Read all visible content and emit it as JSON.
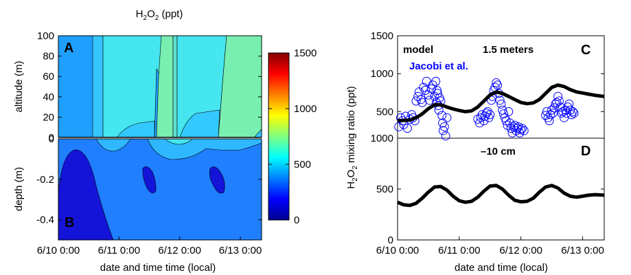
{
  "chart_data": [
    {
      "type": "heatmap",
      "panel": "A",
      "title": "H2O2 (ppt)",
      "title_parts": {
        "base1": "H",
        "sub1": "2",
        "base2": "O",
        "sub2": "2",
        "rest": " (ppt)"
      },
      "ylabel": "altitude (m)",
      "ylim": [
        0,
        100
      ],
      "yticks": [
        "0",
        "20",
        "40",
        "60",
        "80",
        "100"
      ],
      "colorbar": {
        "range": [
          0,
          1500
        ],
        "ticks": [
          "0",
          "500",
          "1000",
          "1500"
        ]
      }
    },
    {
      "type": "heatmap",
      "panel": "B",
      "ylabel": "depth (m)",
      "ylim": [
        -0.5,
        0
      ],
      "yticks": [
        "0",
        "-0.2",
        "-0.4"
      ],
      "xlabel": "date and time time (local)",
      "xticks": [
        "6/10 0:00",
        "6/11 0:00",
        "6/12 0:00",
        "6/13 0:00"
      ]
    },
    {
      "type": "scatter",
      "panel": "C",
      "annotation": "1.5 meters",
      "ylim": [
        0,
        1500
      ],
      "yticks": [
        "500",
        "1000",
        "1500"
      ],
      "legend": [
        "model",
        "Jacobi et al."
      ],
      "series": [
        {
          "name": "model",
          "style": "line",
          "color": "#000000",
          "x": [
            0,
            0.1,
            0.2,
            0.3,
            0.4,
            0.5,
            0.6,
            0.7,
            0.8,
            0.9,
            1.0,
            1.1,
            1.2,
            1.3,
            1.4,
            1.5,
            1.6,
            1.7,
            1.8,
            1.9,
            2.0,
            2.1,
            2.2,
            2.3,
            2.4,
            2.5,
            2.6,
            2.7,
            2.8,
            2.9,
            3.0,
            3.1,
            3.2,
            3.35
          ],
          "y": [
            380,
            385,
            390,
            420,
            470,
            540,
            590,
            590,
            560,
            535,
            515,
            500,
            510,
            560,
            640,
            720,
            760,
            740,
            700,
            660,
            620,
            605,
            615,
            660,
            740,
            820,
            850,
            830,
            790,
            760,
            745,
            730,
            715,
            700
          ]
        },
        {
          "name": "Jacobi et al.",
          "style": "markers",
          "color": "#0000ff",
          "x": [
            0.02,
            0.05,
            0.08,
            0.1,
            0.13,
            0.16,
            0.2,
            0.23,
            0.25,
            0.28,
            0.3,
            0.33,
            0.35,
            0.38,
            0.4,
            0.42,
            0.45,
            0.47,
            0.5,
            0.52,
            0.55,
            0.57,
            0.6,
            0.62,
            0.63,
            0.64,
            0.65,
            0.66,
            0.67,
            0.68,
            0.7,
            0.72,
            0.73,
            0.74,
            0.76,
            0.78,
            0.8,
            1.3,
            1.33,
            1.35,
            1.37,
            1.4,
            1.42,
            1.44,
            1.46,
            1.48,
            1.5,
            1.52,
            1.54,
            1.56,
            1.58,
            1.6,
            1.62,
            1.64,
            1.66,
            1.68,
            1.7,
            1.72,
            1.74,
            1.76,
            1.78,
            1.8,
            1.82,
            1.84,
            1.86,
            1.88,
            1.9,
            1.92,
            1.94,
            1.96,
            1.98,
            2.0,
            2.02,
            2.05,
            2.4,
            2.42,
            2.44,
            2.46,
            2.48,
            2.5,
            2.52,
            2.54,
            2.56,
            2.58,
            2.6,
            2.62,
            2.64,
            2.66,
            2.68,
            2.7,
            2.72,
            2.74,
            2.76,
            2.78,
            2.8,
            2.82,
            2.84,
            2.86
          ],
          "y": [
            300,
            420,
            380,
            330,
            440,
            280,
            400,
            460,
            420,
            380,
            640,
            700,
            760,
            660,
            620,
            820,
            780,
            900,
            720,
            650,
            800,
            850,
            700,
            900,
            620,
            780,
            740,
            580,
            520,
            680,
            640,
            450,
            350,
            250,
            300,
            180,
            420,
            400,
            350,
            420,
            460,
            380,
            440,
            480,
            500,
            420,
            460,
            650,
            700,
            780,
            820,
            880,
            850,
            740,
            650,
            600,
            520,
            470,
            420,
            380,
            320,
            500,
            350,
            280,
            220,
            300,
            320,
            250,
            280,
            300,
            220,
            260,
            280,
            250,
            450,
            500,
            420,
            380,
            460,
            520,
            480,
            550,
            600,
            620,
            700,
            640,
            560,
            480,
            500,
            420,
            520,
            480,
            560,
            600,
            520,
            460,
            500,
            480
          ]
        }
      ]
    },
    {
      "type": "line",
      "panel": "D",
      "annotation": "–10 cm",
      "ylabel": "H2O2 mixing ratio (ppt)",
      "ylabel_parts": {
        "base1": "H",
        "sub1": "2",
        "base2": "O",
        "sub2": "2",
        "rest": " mixing ratio (ppt)"
      },
      "ylim": [
        0,
        1000
      ],
      "yticks": [
        "0",
        "500",
        "1000"
      ],
      "xlabel": "date and time (local)",
      "xticks": [
        "6/10 0:00",
        "6/11 0:00",
        "6/12 0:00",
        "6/13 0:00"
      ],
      "series": [
        {
          "name": "",
          "color": "#000000",
          "x": [
            0,
            0.1,
            0.2,
            0.3,
            0.4,
            0.5,
            0.6,
            0.7,
            0.8,
            0.9,
            1.0,
            1.1,
            1.2,
            1.3,
            1.4,
            1.5,
            1.6,
            1.7,
            1.8,
            1.9,
            2.0,
            2.1,
            2.2,
            2.3,
            2.4,
            2.5,
            2.6,
            2.7,
            2.8,
            2.9,
            3.0,
            3.1,
            3.2,
            3.35
          ],
          "y": [
            370,
            345,
            340,
            360,
            410,
            470,
            520,
            525,
            490,
            430,
            385,
            370,
            380,
            420,
            480,
            530,
            535,
            500,
            440,
            390,
            375,
            380,
            410,
            470,
            520,
            535,
            510,
            460,
            430,
            420,
            430,
            440,
            445,
            440
          ]
        }
      ]
    }
  ],
  "colors": {
    "marker": "#0000ff",
    "model_line": "#000000"
  }
}
